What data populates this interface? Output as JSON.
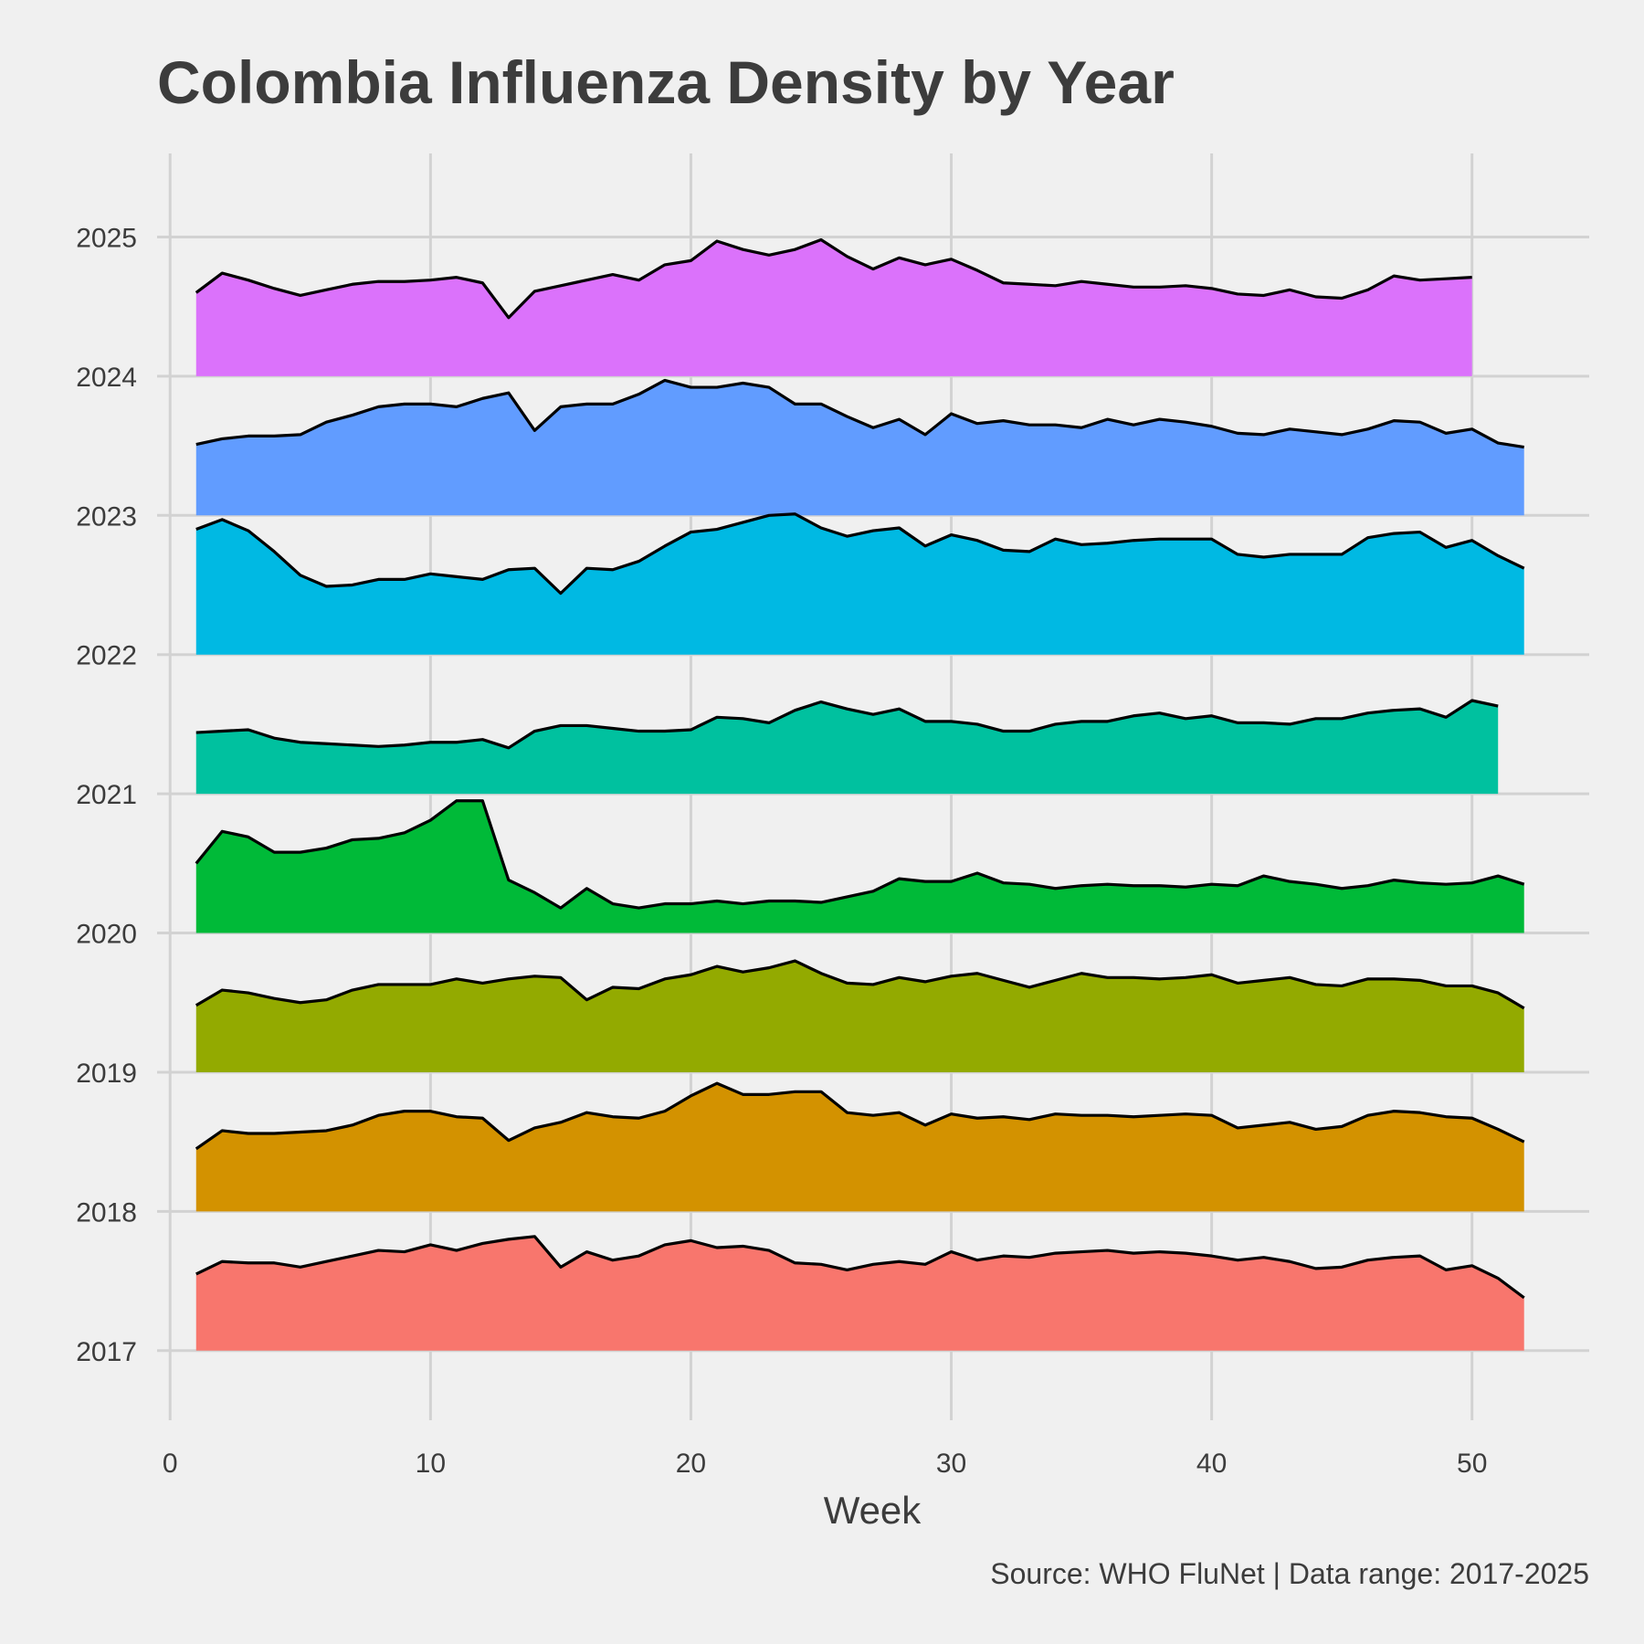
{
  "chart_data": {
    "type": "area",
    "title": "Colombia Influenza Density by Year",
    "xlabel": "Week",
    "ylabel": "",
    "caption": "Source: WHO FluNet | Data range: 2017-2025",
    "xlim": [
      -0.5,
      54.5
    ],
    "ylim": [
      2016.5,
      2025.6
    ],
    "x_ticks": [
      "0",
      "10",
      "20",
      "30",
      "40",
      "50"
    ],
    "y_ticks": [
      "2017",
      "2018",
      "2019",
      "2020",
      "2021",
      "2022",
      "2023",
      "2024",
      "2025"
    ],
    "grid": true,
    "legend": "none",
    "series": [
      {
        "year": 2017,
        "color": "#F8766D",
        "values": [
          0.55,
          0.64,
          0.63,
          0.63,
          0.6,
          0.64,
          0.68,
          0.72,
          0.71,
          0.76,
          0.72,
          0.77,
          0.8,
          0.82,
          0.6,
          0.71,
          0.65,
          0.68,
          0.76,
          0.79,
          0.74,
          0.75,
          0.72,
          0.63,
          0.62,
          0.58,
          0.62,
          0.64,
          0.62,
          0.71,
          0.65,
          0.68,
          0.67,
          0.7,
          0.71,
          0.72,
          0.7,
          0.71,
          0.7,
          0.68,
          0.65,
          0.67,
          0.64,
          0.59,
          0.6,
          0.65,
          0.67,
          0.68,
          0.58,
          0.61,
          0.52,
          0.38
        ]
      },
      {
        "year": 2018,
        "color": "#D39200",
        "values": [
          0.45,
          0.58,
          0.56,
          0.56,
          0.57,
          0.58,
          0.62,
          0.69,
          0.72,
          0.72,
          0.68,
          0.67,
          0.51,
          0.6,
          0.64,
          0.71,
          0.68,
          0.67,
          0.72,
          0.83,
          0.92,
          0.84,
          0.84,
          0.86,
          0.86,
          0.71,
          0.69,
          0.71,
          0.62,
          0.7,
          0.67,
          0.68,
          0.66,
          0.7,
          0.69,
          0.69,
          0.68,
          0.69,
          0.7,
          0.69,
          0.6,
          0.62,
          0.64,
          0.59,
          0.61,
          0.69,
          0.72,
          0.71,
          0.68,
          0.67,
          0.59,
          0.5
        ]
      },
      {
        "year": 2019,
        "color": "#93AA00",
        "values": [
          0.48,
          0.59,
          0.57,
          0.53,
          0.5,
          0.52,
          0.59,
          0.63,
          0.63,
          0.63,
          0.67,
          0.64,
          0.67,
          0.69,
          0.68,
          0.52,
          0.61,
          0.6,
          0.67,
          0.7,
          0.76,
          0.72,
          0.75,
          0.8,
          0.71,
          0.64,
          0.63,
          0.68,
          0.65,
          0.69,
          0.71,
          0.66,
          0.61,
          0.66,
          0.71,
          0.68,
          0.68,
          0.67,
          0.68,
          0.7,
          0.64,
          0.66,
          0.68,
          0.63,
          0.62,
          0.67,
          0.67,
          0.66,
          0.62,
          0.62,
          0.57,
          0.46
        ]
      },
      {
        "year": 2020,
        "color": "#00BA38",
        "values": [
          0.5,
          0.73,
          0.69,
          0.58,
          0.58,
          0.61,
          0.67,
          0.68,
          0.72,
          0.81,
          0.95,
          0.95,
          0.38,
          0.29,
          0.18,
          0.32,
          0.21,
          0.18,
          0.21,
          0.21,
          0.23,
          0.21,
          0.23,
          0.23,
          0.22,
          0.26,
          0.3,
          0.39,
          0.37,
          0.37,
          0.43,
          0.36,
          0.35,
          0.32,
          0.34,
          0.35,
          0.34,
          0.34,
          0.33,
          0.35,
          0.34,
          0.41,
          0.37,
          0.35,
          0.32,
          0.34,
          0.38,
          0.36,
          0.35,
          0.36,
          0.41,
          0.35
        ]
      },
      {
        "year": 2021,
        "color": "#00C19F",
        "values": [
          0.44,
          0.45,
          0.46,
          0.4,
          0.37,
          0.36,
          0.35,
          0.34,
          0.35,
          0.37,
          0.37,
          0.39,
          0.33,
          0.45,
          0.49,
          0.49,
          0.47,
          0.45,
          0.45,
          0.46,
          0.55,
          0.54,
          0.51,
          0.6,
          0.66,
          0.61,
          0.57,
          0.61,
          0.52,
          0.52,
          0.5,
          0.45,
          0.45,
          0.5,
          0.52,
          0.52,
          0.56,
          0.58,
          0.54,
          0.56,
          0.51,
          0.51,
          0.5,
          0.54,
          0.54,
          0.58,
          0.6,
          0.61,
          0.55,
          0.67,
          0.63
        ]
      },
      {
        "year": 2022,
        "color": "#00B9E3",
        "values": [
          0.9,
          0.97,
          0.89,
          0.74,
          0.57,
          0.49,
          0.5,
          0.54,
          0.54,
          0.58,
          0.56,
          0.54,
          0.61,
          0.62,
          0.44,
          0.62,
          0.61,
          0.67,
          0.78,
          0.88,
          0.9,
          0.95,
          1.0,
          1.01,
          0.91,
          0.85,
          0.89,
          0.91,
          0.78,
          0.86,
          0.82,
          0.75,
          0.74,
          0.83,
          0.79,
          0.8,
          0.82,
          0.83,
          0.83,
          0.83,
          0.72,
          0.7,
          0.72,
          0.72,
          0.72,
          0.84,
          0.87,
          0.88,
          0.77,
          0.82,
          0.71,
          0.62
        ]
      },
      {
        "year": 2023,
        "color": "#619CFF",
        "values": [
          0.51,
          0.55,
          0.57,
          0.57,
          0.58,
          0.67,
          0.72,
          0.78,
          0.8,
          0.8,
          0.78,
          0.84,
          0.88,
          0.61,
          0.78,
          0.8,
          0.8,
          0.87,
          0.97,
          0.92,
          0.92,
          0.95,
          0.92,
          0.8,
          0.8,
          0.71,
          0.63,
          0.69,
          0.58,
          0.73,
          0.66,
          0.68,
          0.65,
          0.65,
          0.63,
          0.69,
          0.65,
          0.69,
          0.67,
          0.64,
          0.59,
          0.58,
          0.62,
          0.6,
          0.58,
          0.62,
          0.68,
          0.67,
          0.59,
          0.62,
          0.52,
          0.49
        ]
      },
      {
        "year": 2024,
        "color": "#DB72FB",
        "values": [
          0.6,
          0.74,
          0.69,
          0.63,
          0.58,
          0.62,
          0.66,
          0.68,
          0.68,
          0.69,
          0.71,
          0.67,
          0.42,
          0.61,
          0.65,
          0.69,
          0.73,
          0.69,
          0.8,
          0.83,
          0.97,
          0.91,
          0.87,
          0.91,
          0.98,
          0.86,
          0.77,
          0.85,
          0.8,
          0.84,
          0.76,
          0.67,
          0.66,
          0.65,
          0.68,
          0.66,
          0.64,
          0.64,
          0.65,
          0.63,
          0.59,
          0.58,
          0.62,
          0.57,
          0.56,
          0.62,
          0.72,
          0.69,
          0.7,
          0.71
        ]
      }
    ]
  }
}
